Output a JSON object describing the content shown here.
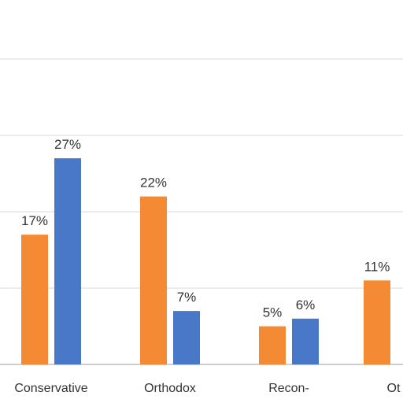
{
  "chart_data": {
    "type": "bar",
    "categories": [
      "Conservative",
      "Orthodox",
      "Recon-",
      "Ot"
    ],
    "series": [
      {
        "values": [
          17,
          22,
          5,
          11
        ],
        "value_labels": [
          "17%",
          "22%",
          "5%",
          "11%"
        ]
      },
      {
        "values": [
          27,
          7,
          6,
          null
        ],
        "value_labels": [
          "27%",
          "7%",
          "6%",
          ""
        ]
      }
    ],
    "ylim": [
      0,
      40
    ],
    "grid": true,
    "colors": [
      "#f58a34",
      "#4a78c8"
    ],
    "gridline_color": "#d9d9d9",
    "axis_color": "#bfbfbf"
  }
}
